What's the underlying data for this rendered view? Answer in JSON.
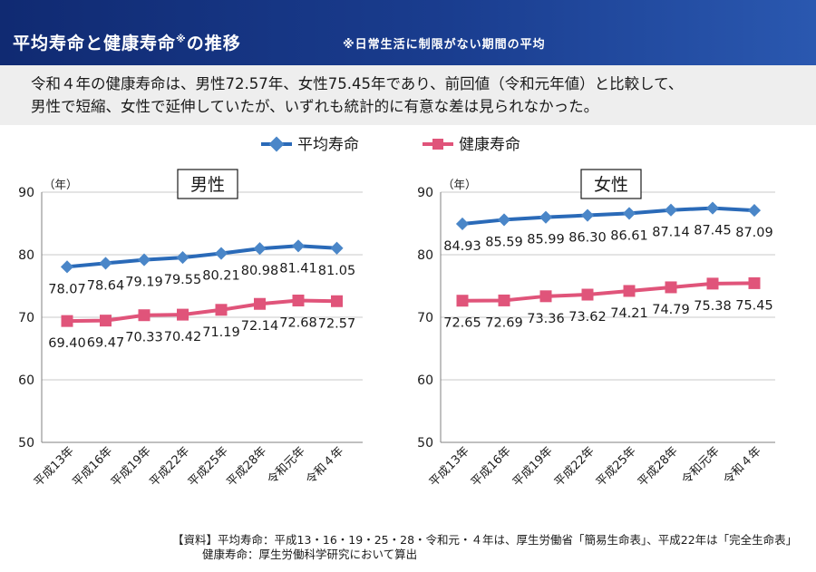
{
  "header": {
    "title": "平均寿命と健康寿命",
    "title_mark": "※",
    "title_suffix": "の推移",
    "subtitle": "※日常生活に制限がない期間の平均"
  },
  "summary": {
    "line1": "令和４年の健康寿命は、男性72.57年、女性75.45年であり、前回値（令和元年値）と比較して、",
    "line2": "男性で短縮、女性で延伸していたが、いずれも統計的に有意な差は見られなかった。"
  },
  "legend": {
    "avg": "平均寿命",
    "healthy": "健康寿命"
  },
  "colors": {
    "avg": "#2a6ab8",
    "avg_marker": "#4a86c8",
    "healthy": "#e0547a",
    "grid": "#c8c8c8",
    "axis": "#808080"
  },
  "chart_data": [
    {
      "type": "line",
      "title": "男性",
      "ylabel": "（年）",
      "ylim": [
        50,
        90
      ],
      "yticks": [
        50,
        60,
        70,
        80,
        90
      ],
      "categories": [
        "平成13年",
        "平成16年",
        "平成19年",
        "平成22年",
        "平成25年",
        "平成28年",
        "令和元年",
        "令和４年"
      ],
      "series": [
        {
          "name": "平均寿命",
          "values": [
            78.07,
            78.64,
            79.19,
            79.55,
            80.21,
            80.98,
            81.41,
            81.05
          ]
        },
        {
          "name": "健康寿命",
          "values": [
            69.4,
            69.47,
            70.33,
            70.42,
            71.19,
            72.14,
            72.68,
            72.57
          ]
        }
      ]
    },
    {
      "type": "line",
      "title": "女性",
      "ylabel": "（年）",
      "ylim": [
        50,
        90
      ],
      "yticks": [
        50,
        60,
        70,
        80,
        90
      ],
      "categories": [
        "平成13年",
        "平成16年",
        "平成19年",
        "平成22年",
        "平成25年",
        "平成28年",
        "令和元年",
        "令和４年"
      ],
      "series": [
        {
          "name": "平均寿命",
          "values": [
            84.93,
            85.59,
            85.99,
            86.3,
            86.61,
            87.14,
            87.45,
            87.09
          ]
        },
        {
          "name": "健康寿命",
          "values": [
            72.65,
            72.69,
            73.36,
            73.62,
            74.21,
            74.79,
            75.38,
            75.45
          ]
        }
      ]
    }
  ],
  "footer": {
    "line1": "【資料】平均寿命：平成13・16・19・25・28・令和元・４年は、厚生労働省「簡易生命表」、平成22年は「完全生命表」",
    "line2": "健康寿命：厚生労働科学研究において算出"
  }
}
